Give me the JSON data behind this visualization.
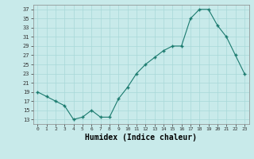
{
  "x": [
    0,
    1,
    2,
    3,
    4,
    5,
    6,
    7,
    8,
    9,
    10,
    11,
    12,
    13,
    14,
    15,
    16,
    17,
    18,
    19,
    20,
    21,
    22,
    23
  ],
  "y": [
    19,
    18,
    17,
    16,
    13,
    13.5,
    15,
    13.5,
    13.5,
    17.5,
    20,
    23,
    25,
    26.5,
    28,
    29,
    29,
    35,
    37,
    37,
    33.5,
    31,
    27,
    23
  ],
  "line_color": "#1a7a6e",
  "marker_color": "#1a7a6e",
  "bg_color": "#c8eaea",
  "grid_color": "#a8d8d8",
  "xlabel": "Humidex (Indice chaleur)",
  "ylabel_ticks": [
    13,
    15,
    17,
    19,
    21,
    23,
    25,
    27,
    29,
    31,
    33,
    35,
    37
  ],
  "ylim": [
    12,
    38
  ],
  "xlim": [
    -0.5,
    23.5
  ],
  "label_fontsize": 7
}
